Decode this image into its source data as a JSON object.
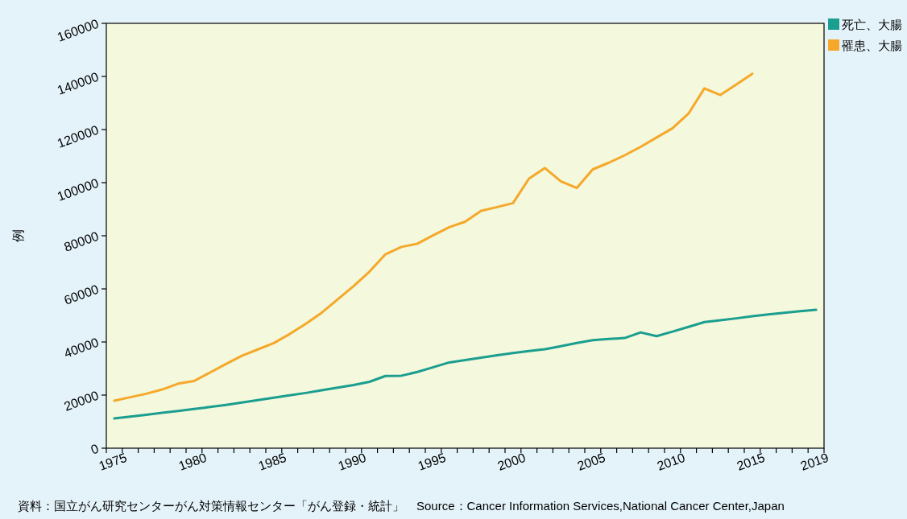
{
  "chart_data": {
    "type": "line",
    "ylabel": "例",
    "categories": [
      "1975",
      null,
      null,
      null,
      null,
      "1980",
      null,
      null,
      null,
      null,
      "1985",
      null,
      null,
      null,
      null,
      "1990",
      null,
      null,
      null,
      null,
      "1995",
      null,
      null,
      null,
      null,
      "2000",
      null,
      null,
      null,
      null,
      "2005",
      null,
      null,
      null,
      null,
      "2010",
      null,
      null,
      null,
      null,
      "2015",
      null,
      null,
      null,
      "2019"
    ],
    "series": [
      {
        "name": "死亡、大腸",
        "color": "#1a9e8f",
        "values": [
          11200,
          11900,
          12600,
          13300,
          14000,
          14800,
          15500,
          16300,
          17200,
          18100,
          19000,
          19900,
          20800,
          21800,
          22800,
          23800,
          25000,
          27200,
          27300,
          28700,
          30500,
          32300,
          33200,
          34100,
          35000,
          35800,
          36600,
          37300,
          38400,
          39600,
          40700,
          41100,
          41500,
          43600,
          42200,
          43900,
          45700,
          47500,
          48200,
          48900,
          49700,
          50400,
          51000,
          51600,
          52100
        ]
      },
      {
        "name": "罹患、大腸",
        "color": "#f5a82a",
        "values": [
          17900,
          19200,
          20500,
          22100,
          24300,
          25300,
          28500,
          31700,
          34800,
          37200,
          39600,
          43000,
          46800,
          51000,
          56000,
          61000,
          66500,
          73000,
          75800,
          77000,
          80200,
          83200,
          85300,
          89400,
          90800,
          92300,
          101500,
          105500,
          100500,
          98000,
          105000,
          107500,
          110300,
          113500,
          117000,
          120500,
          126000,
          135500,
          133000,
          137000,
          141000,
          null,
          null,
          null,
          null
        ]
      }
    ],
    "ylim": [
      0,
      160000
    ],
    "yticks": [
      0,
      20000,
      40000,
      60000,
      80000,
      100000,
      120000,
      140000,
      160000
    ],
    "legend": "top right",
    "grid": false,
    "annotations": [
      "資料：国立がん研究センターがん対策情報センター「がん登録・統計」　Source：Cancer Information Services,National Cancer Center,Japan"
    ]
  }
}
